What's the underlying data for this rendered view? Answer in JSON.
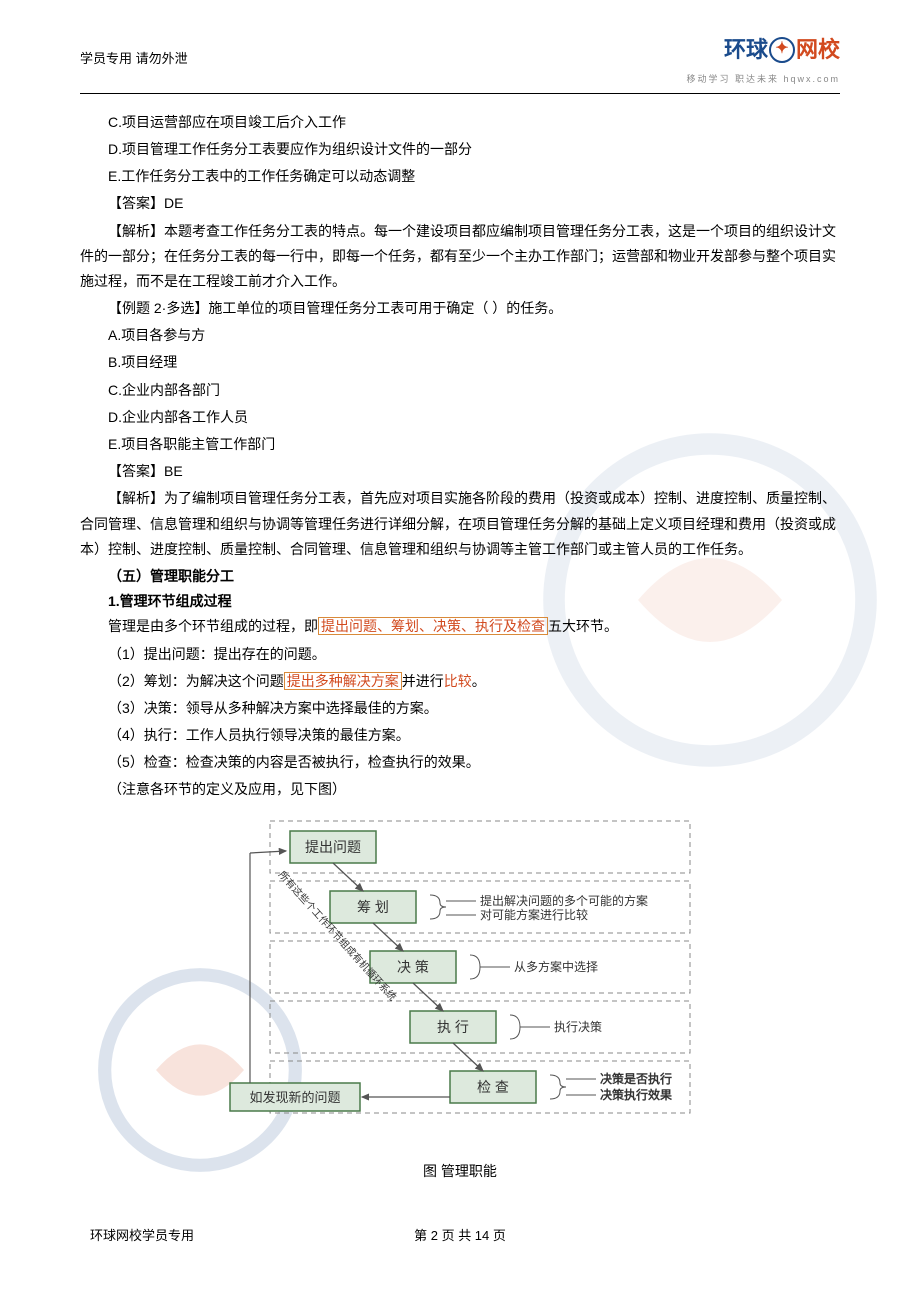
{
  "header": {
    "left": "学员专用  请勿外泄",
    "logo_text_1": "环球",
    "logo_text_2": "网校",
    "logo_sub": "移动学习  职达未来   hqwx.com"
  },
  "body": {
    "lines": [
      {
        "cls": "opt",
        "text": "C.项目运营部应在项目竣工后介入工作"
      },
      {
        "cls": "opt",
        "text": "D.项目管理工作任务分工表要应作为组织设计文件的一部分"
      },
      {
        "cls": "opt",
        "text": "E.工作任务分工表中的工作任务确定可以动态调整"
      },
      {
        "cls": "para",
        "text": "【答案】DE"
      },
      {
        "cls": "para",
        "text": "【解析】本题考查工作任务分工表的特点。每一个建设项目都应编制项目管理任务分工表，这是一个项目的组织设计文件的一部分；在任务分工表的每一行中，即每一个任务，都有至少一个主办工作部门；运营部和物业开发部参与整个项目实施过程，而不是在工程竣工前才介入工作。",
        "long": true
      },
      {
        "cls": "para",
        "text": "【例题 2·多选】施工单位的项目管理任务分工表可用于确定（    ）的任务。"
      },
      {
        "cls": "opt",
        "text": "A.项目各参与方"
      },
      {
        "cls": "opt",
        "text": "B.项目经理"
      },
      {
        "cls": "opt",
        "text": "C.企业内部各部门"
      },
      {
        "cls": "opt",
        "text": "D.企业内部各工作人员"
      },
      {
        "cls": "opt",
        "text": "E.项目各职能主管工作部门"
      },
      {
        "cls": "para",
        "text": "【答案】BE"
      },
      {
        "cls": "para",
        "text": "【解析】为了编制项目管理任务分工表，首先应对项目实施各阶段的费用（投资或成本）控制、进度控制、质量控制、合同管理、信息管理和组织与协调等管理任务进行详细分解，在项目管理任务分解的基础上定义项目经理和费用（投资或成本）控制、进度控制、质量控制、合同管理、信息管理和组织与协调等主管工作部门或主管人员的工作任务。",
        "long": true
      }
    ],
    "section5": "（五）管理职能分工",
    "sub1": "1.管理环节组成过程",
    "mgmt_intro_pre": "管理是由多个环节组成的过程，即",
    "mgmt_intro_hl": "提出问题、筹划、决策、执行及检查",
    "mgmt_intro_post": "五大环节。",
    "steps": [
      "（1）提出问题：提出存在的问题。"
    ],
    "step2_pre": "（2）筹划：为解决这个问题",
    "step2_hl1": "提出多种解决方案",
    "step2_mid": "并进行",
    "step2_hl2": "比较",
    "step2_post": "。",
    "steps_after": [
      "（3）决策：领导从多种解决方案中选择最佳的方案。",
      "（4）执行：工作人员执行领导决策的最佳方案。",
      "（5）检查：检查决策的内容是否被执行，检查执行的效果。",
      "（注意各环节的定义及应用，见下图）"
    ]
  },
  "diagram": {
    "caption": "图    管理职能",
    "nodes": {
      "n1": "提出问题",
      "n2": "筹    划",
      "n3": "决    策",
      "n4": "执    行",
      "n5": "检    查",
      "feedback": "如发现新的问题",
      "side_text": "所有这些个工作环节组成有机循环系统"
    },
    "annotations": {
      "a1": "提出解决问题的多个可能的方案",
      "a2": "对可能方案进行比较",
      "a3": "从多方案中选择",
      "a4": "执行决策",
      "a5a": "决策是否执行",
      "a5b": "决策执行效果"
    },
    "colors": {
      "box_border": "#4a7a4a",
      "box_fill": "#dde9dd",
      "dash": "#888888",
      "text": "#3a3a3a"
    }
  },
  "footer": {
    "left": "环球网校学员专用",
    "center": "第 2 页 共 14 页"
  }
}
